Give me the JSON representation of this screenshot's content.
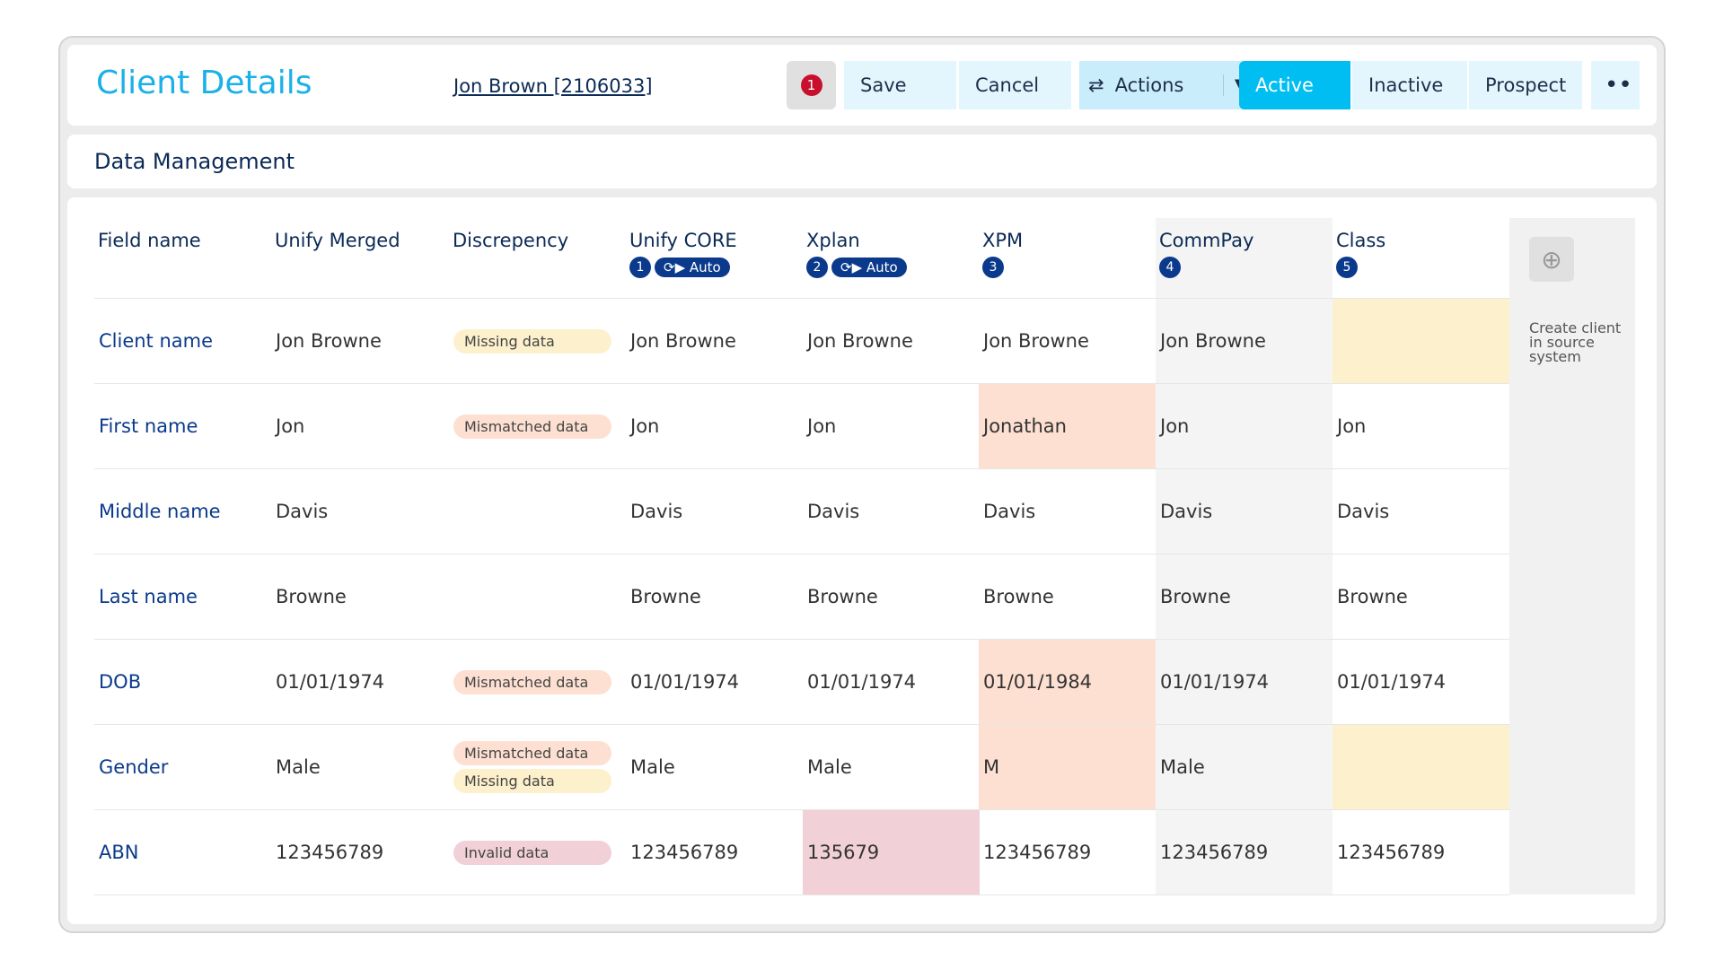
{
  "header": {
    "title": "Client Details",
    "client_link": "Jon Brown [2106033]",
    "alert_count": "1",
    "buttons": [
      "Save",
      "Cancel",
      "Actions",
      "Active",
      "Inactive",
      "Prospect"
    ]
  },
  "section_title": "Data Management",
  "table": {
    "columns": [
      {
        "name": "Field name"
      },
      {
        "name": "Unify Merged"
      },
      {
        "name": "Discrepency"
      },
      {
        "name": "Unify CORE",
        "badge": "1",
        "tag": "Auto"
      },
      {
        "name": "Xplan",
        "badge": "2",
        "tag": "Auto"
      },
      {
        "name": "XPM",
        "badge": "3"
      },
      {
        "name": "CommPay",
        "badge": "4"
      },
      {
        "name": "Class",
        "badge": "5"
      }
    ],
    "rows": [
      {
        "field": "Client name",
        "merged": "Jon Browne",
        "discrepancies": [
          {
            "label": "Missing data",
            "color": "#fdf0cc"
          }
        ],
        "sources": [
          "Jon Browne",
          "Jon Browne",
          "Jon Browne",
          "Jon Browne",
          null
        ],
        "backgrounds": [
          null,
          null,
          null,
          null,
          "#fdf0cc"
        ]
      },
      {
        "field": "First name",
        "merged": "Jon",
        "discrepancies": [
          {
            "label": "Mismatched data",
            "color": "#fde0d2"
          }
        ],
        "sources": [
          "Jon",
          "Jon",
          "Jonathan",
          "Jon",
          "Jon"
        ],
        "backgrounds": [
          null,
          null,
          "#fde0d2",
          null,
          null
        ]
      },
      {
        "field": "Middle name",
        "merged": "Davis",
        "discrepancies": [],
        "sources": [
          "Davis",
          "Davis",
          "Davis",
          "Davis",
          "Davis"
        ],
        "backgrounds": [
          null,
          null,
          null,
          null,
          null
        ]
      },
      {
        "field": "Last name",
        "merged": "Browne",
        "discrepancies": [],
        "sources": [
          "Browne",
          "Browne",
          "Browne",
          "Browne",
          "Browne"
        ],
        "backgrounds": [
          null,
          null,
          null,
          null,
          null
        ]
      },
      {
        "field": "DOB",
        "merged": "01/01/1974",
        "discrepancies": [
          {
            "label": "Mismatched data",
            "color": "#fde0d2"
          }
        ],
        "sources": [
          "01/01/1974",
          "01/01/1974",
          "01/01/1984",
          "01/01/1974",
          "01/01/1974"
        ],
        "backgrounds": [
          null,
          null,
          "#fde0d2",
          null,
          null
        ]
      },
      {
        "field": "Gender",
        "merged": "Male",
        "discrepancies": [
          {
            "label": "Mismatched data",
            "color": "#fde0d2"
          },
          {
            "label": "Missing data",
            "color": "#fdf0cc"
          }
        ],
        "sources": [
          "Male",
          "Male",
          "M",
          "Male",
          null
        ],
        "backgrounds": [
          null,
          null,
          "#fde0d2",
          null,
          "#fdf0cc"
        ]
      },
      {
        "field": "ABN",
        "merged": "123456789",
        "discrepancies": [
          {
            "label": "Invalid data",
            "color": "#f1d0d8"
          }
        ],
        "sources": [
          "123456789",
          "135679",
          "123456789",
          "123456789",
          "123456789"
        ],
        "backgrounds": [
          null,
          "#f1d0d8",
          null,
          null,
          null
        ]
      }
    ]
  },
  "create_client": "Create client in source system"
}
